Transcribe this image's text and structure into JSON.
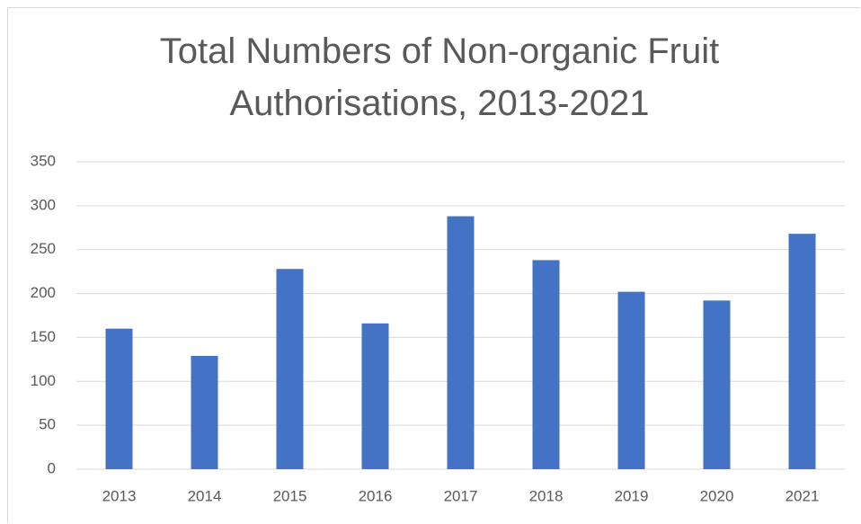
{
  "chart_data": {
    "type": "bar",
    "title": "Total Numbers of Non-organic Fruit Authorisations, 2013-2021",
    "categories": [
      "2013",
      "2014",
      "2015",
      "2016",
      "2017",
      "2018",
      "2019",
      "2020",
      "2021"
    ],
    "values": [
      160,
      129,
      228,
      166,
      288,
      238,
      202,
      192,
      268
    ],
    "color": "#4472c4",
    "ylim": [
      0,
      350
    ],
    "yticks": [
      0,
      50,
      100,
      150,
      200,
      250,
      300,
      350
    ],
    "grid": true
  }
}
